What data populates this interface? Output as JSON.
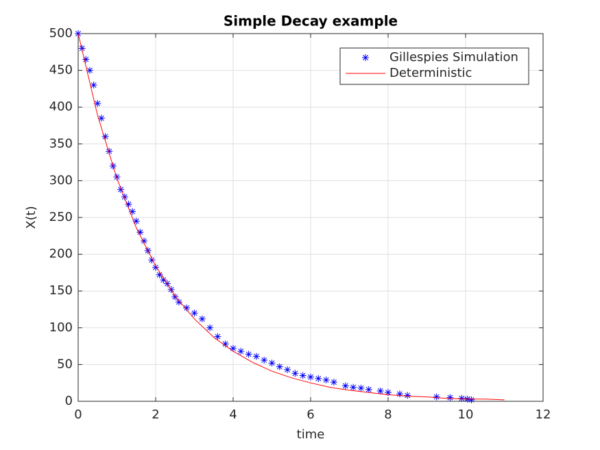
{
  "chart_data": {
    "type": "scatter-line",
    "title": "Simple Decay example",
    "xlabel": "time",
    "ylabel": "X(t)",
    "xlim": [
      0,
      12
    ],
    "xticks": [
      0,
      2,
      4,
      6,
      8,
      10,
      12
    ],
    "ylim": [
      0,
      500
    ],
    "yticks": [
      0,
      50,
      100,
      150,
      200,
      250,
      300,
      350,
      400,
      450,
      500
    ],
    "grid": true,
    "legend": "upper right",
    "series": [
      {
        "name": "Gillespies Simulation",
        "color": "#0000ff",
        "marker": "asterisk",
        "x": [
          0,
          0.1,
          0.2,
          0.3,
          0.4,
          0.5,
          0.6,
          0.7,
          0.8,
          0.9,
          1.0,
          1.1,
          1.2,
          1.3,
          1.4,
          1.5,
          1.6,
          1.7,
          1.8,
          1.9,
          2.0,
          2.1,
          2.2,
          2.3,
          2.4,
          2.5,
          2.6,
          2.8,
          3.0,
          3.2,
          3.4,
          3.6,
          3.8,
          4.0,
          4.2,
          4.4,
          4.6,
          4.8,
          5.0,
          5.2,
          5.4,
          5.6,
          5.8,
          6.0,
          6.2,
          6.4,
          6.6,
          6.9,
          7.1,
          7.3,
          7.5,
          7.8,
          8.0,
          8.3,
          8.5,
          9.25,
          9.6,
          9.9,
          10.05,
          10.15
        ],
        "values": [
          500,
          480,
          465,
          450,
          430,
          405,
          385,
          360,
          340,
          320,
          305,
          288,
          278,
          268,
          258,
          245,
          230,
          218,
          205,
          192,
          182,
          172,
          165,
          160,
          152,
          142,
          135,
          127,
          120,
          112,
          100,
          88,
          78,
          72,
          68,
          64,
          61,
          56,
          52,
          47,
          43,
          38,
          35,
          33,
          31,
          29,
          26,
          21,
          19,
          18,
          16,
          14,
          12,
          10,
          8,
          6,
          5,
          4,
          3,
          2
        ]
      },
      {
        "name": "Deterministic",
        "color": "#ff0000",
        "marker": "line",
        "x": [
          0,
          0.5,
          1,
          1.5,
          2,
          2.5,
          3,
          3.5,
          4,
          4.5,
          5,
          5.5,
          6,
          6.5,
          7,
          7.5,
          8,
          8.5,
          9,
          9.5,
          10,
          10.5,
          11
        ],
        "values": [
          500,
          389,
          303,
          236,
          184,
          143,
          112,
          87,
          68,
          53,
          41,
          32,
          25,
          19,
          15,
          12,
          9,
          7,
          6,
          4,
          3,
          3,
          2
        ]
      }
    ]
  }
}
